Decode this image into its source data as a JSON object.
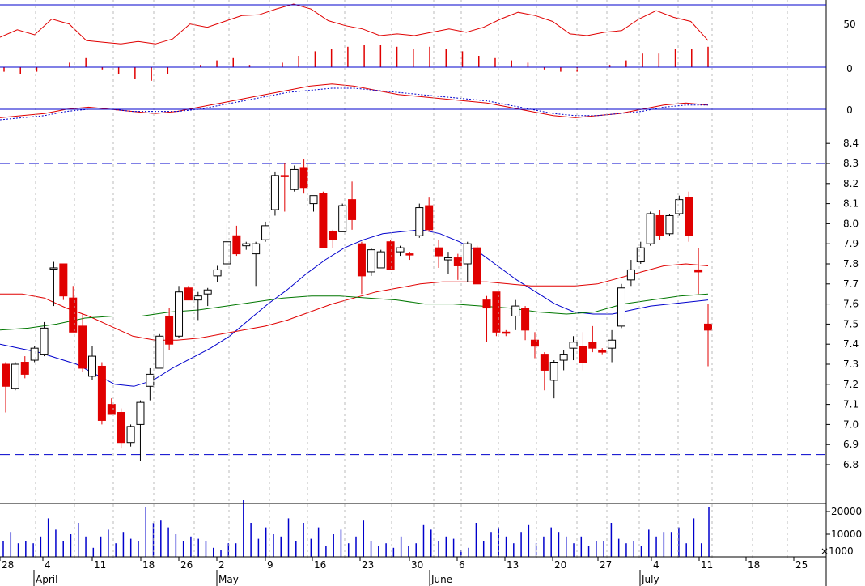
{
  "chart_data": [
    {
      "type": "line",
      "panel": "oscillator-top",
      "y_tick_labels": [
        "50",
        "0"
      ],
      "series": [
        {
          "values": [
            36,
            45,
            39,
            58,
            52,
            32,
            30,
            28,
            31,
            28,
            34,
            52,
            48,
            55,
            62,
            63,
            70,
            76,
            70,
            56,
            50,
            46,
            38,
            40,
            38,
            42,
            46,
            42,
            48,
            58,
            66,
            62,
            55,
            40,
            38,
            42,
            44,
            58,
            68,
            60,
            55,
            32
          ]
        }
      ],
      "histogram": [
        -2,
        -3,
        -2,
        0,
        2,
        4,
        -1,
        -3,
        -5,
        -6,
        -3,
        0,
        1,
        3,
        4,
        1,
        0,
        2,
        5,
        7,
        8,
        9,
        10,
        10,
        9,
        8,
        9,
        8,
        7,
        5,
        4,
        3,
        2,
        -1,
        -2,
        -2,
        0,
        1,
        3,
        6,
        6,
        8,
        8,
        9
      ]
    },
    {
      "type": "line",
      "panel": "macd",
      "y_tick_labels": [
        "0"
      ],
      "series": [
        {
          "color": "#e00000",
          "values": [
            -0.04,
            -0.03,
            -0.02,
            0.0,
            0.01,
            0.0,
            -0.01,
            -0.02,
            -0.01,
            0.01,
            0.03,
            0.05,
            0.07,
            0.09,
            0.11,
            0.12,
            0.11,
            0.09,
            0.07,
            0.06,
            0.05,
            0.04,
            0.03,
            0.01,
            -0.01,
            -0.03,
            -0.04,
            -0.03,
            -0.02,
            0.0,
            0.02,
            0.03,
            0.02
          ]
        },
        {
          "color": "#0000cc",
          "style": "dotted",
          "values": [
            -0.05,
            -0.04,
            -0.03,
            -0.01,
            0.0,
            0.0,
            -0.01,
            -0.01,
            -0.01,
            0.0,
            0.02,
            0.04,
            0.06,
            0.08,
            0.09,
            0.1,
            0.1,
            0.09,
            0.08,
            0.07,
            0.06,
            0.05,
            0.04,
            0.02,
            0.0,
            -0.02,
            -0.03,
            -0.03,
            -0.02,
            -0.01,
            0.01,
            0.02,
            0.02
          ]
        }
      ]
    },
    {
      "type": "candlestick",
      "panel": "price",
      "ylim": [
        6.75,
        8.45
      ],
      "y_tick_labels": [
        "8.4",
        "8.3",
        "8.2",
        "8.1",
        "8.0",
        "7.9",
        "7.8",
        "7.7",
        "7.6",
        "7.5",
        "7.4",
        "7.3",
        "7.2",
        "7.1",
        "7.0",
        "6.9",
        "6.8"
      ],
      "x_tick_labels": [
        "28",
        "4",
        "11",
        "18",
        "26",
        "2",
        "9",
        "16",
        "23",
        "30",
        "6",
        "13",
        "20",
        "27",
        "4",
        "11",
        "18",
        "25"
      ],
      "x_month_labels": [
        "April",
        "May",
        "June",
        "July"
      ],
      "hlines": [
        8.3,
        6.85
      ],
      "candles": [
        {
          "o": 7.3,
          "h": 7.31,
          "l": 7.06,
          "c": 7.19,
          "up": false
        },
        {
          "o": 7.18,
          "h": 7.31,
          "l": 7.17,
          "c": 7.3,
          "up": true
        },
        {
          "o": 7.31,
          "h": 7.34,
          "l": 7.23,
          "c": 7.25,
          "up": false
        },
        {
          "o": 7.32,
          "h": 7.39,
          "l": 7.31,
          "c": 7.38,
          "up": true
        },
        {
          "o": 7.35,
          "h": 7.51,
          "l": 7.34,
          "c": 7.48,
          "up": true
        },
        {
          "o": 7.78,
          "h": 7.81,
          "l": 7.59,
          "c": 7.78,
          "up": true
        },
        {
          "o": 7.8,
          "h": 7.8,
          "l": 7.62,
          "c": 7.64,
          "up": false
        },
        {
          "o": 7.63,
          "h": 7.69,
          "l": 7.46,
          "c": 7.46,
          "up": false
        },
        {
          "o": 7.49,
          "h": 7.55,
          "l": 7.26,
          "c": 7.28,
          "up": false
        },
        {
          "o": 7.34,
          "h": 7.39,
          "l": 7.22,
          "c": 7.24,
          "up": true
        },
        {
          "o": 7.29,
          "h": 7.31,
          "l": 7.0,
          "c": 7.02,
          "up": false
        },
        {
          "o": 7.1,
          "h": 7.13,
          "l": 7.05,
          "c": 7.05,
          "up": false
        },
        {
          "o": 7.06,
          "h": 7.08,
          "l": 6.88,
          "c": 6.91,
          "up": false
        },
        {
          "o": 6.91,
          "h": 7.0,
          "l": 6.89,
          "c": 6.99,
          "up": true
        },
        {
          "o": 7.0,
          "h": 7.12,
          "l": 6.82,
          "c": 7.11,
          "up": true
        },
        {
          "o": 7.19,
          "h": 7.28,
          "l": 7.12,
          "c": 7.25,
          "up": true
        },
        {
          "o": 7.28,
          "h": 7.45,
          "l": 7.28,
          "c": 7.44,
          "up": true
        },
        {
          "o": 7.54,
          "h": 7.58,
          "l": 7.37,
          "c": 7.4,
          "up": false
        },
        {
          "o": 7.44,
          "h": 7.69,
          "l": 7.43,
          "c": 7.66,
          "up": true
        },
        {
          "o": 7.68,
          "h": 7.69,
          "l": 7.62,
          "c": 7.62,
          "up": false
        },
        {
          "o": 7.62,
          "h": 7.66,
          "l": 7.52,
          "c": 7.64,
          "up": true
        },
        {
          "o": 7.65,
          "h": 7.68,
          "l": 7.59,
          "c": 7.67,
          "up": true
        },
        {
          "o": 7.74,
          "h": 7.79,
          "l": 7.71,
          "c": 7.77,
          "up": true
        },
        {
          "o": 7.8,
          "h": 8.0,
          "l": 7.79,
          "c": 7.91,
          "up": true
        },
        {
          "o": 7.94,
          "h": 7.99,
          "l": 7.84,
          "c": 7.85,
          "up": false
        },
        {
          "o": 7.89,
          "h": 7.91,
          "l": 7.87,
          "c": 7.9,
          "up": true
        },
        {
          "o": 7.85,
          "h": 7.91,
          "l": 7.69,
          "c": 7.9,
          "up": true
        },
        {
          "o": 7.92,
          "h": 8.01,
          "l": 7.91,
          "c": 7.99,
          "up": true
        },
        {
          "o": 8.07,
          "h": 8.26,
          "l": 8.04,
          "c": 8.24,
          "up": true
        },
        {
          "o": 8.24,
          "h": 8.3,
          "l": 8.06,
          "c": 8.24,
          "up": false
        },
        {
          "o": 8.17,
          "h": 8.29,
          "l": 8.16,
          "c": 8.27,
          "up": true
        },
        {
          "o": 8.28,
          "h": 8.32,
          "l": 8.15,
          "c": 8.18,
          "up": false
        },
        {
          "o": 8.14,
          "h": 8.14,
          "l": 8.06,
          "c": 8.1,
          "up": true
        },
        {
          "o": 8.15,
          "h": 8.16,
          "l": 7.88,
          "c": 7.88,
          "up": false
        },
        {
          "o": 7.96,
          "h": 7.97,
          "l": 7.88,
          "c": 7.92,
          "up": false
        },
        {
          "o": 7.96,
          "h": 8.1,
          "l": 7.96,
          "c": 8.09,
          "up": true
        },
        {
          "o": 8.12,
          "h": 8.21,
          "l": 7.97,
          "c": 8.02,
          "up": false
        },
        {
          "o": 7.9,
          "h": 7.91,
          "l": 7.65,
          "c": 7.74,
          "up": false
        },
        {
          "o": 7.76,
          "h": 7.88,
          "l": 7.74,
          "c": 7.87,
          "up": true
        },
        {
          "o": 7.78,
          "h": 7.87,
          "l": 7.78,
          "c": 7.86,
          "up": true
        },
        {
          "o": 7.91,
          "h": 7.92,
          "l": 7.77,
          "c": 7.77,
          "up": false
        },
        {
          "o": 7.86,
          "h": 7.89,
          "l": 7.84,
          "c": 7.88,
          "up": true
        },
        {
          "o": 7.85,
          "h": 7.86,
          "l": 7.82,
          "c": 7.85,
          "up": false
        },
        {
          "o": 7.94,
          "h": 8.1,
          "l": 7.93,
          "c": 8.08,
          "up": true
        },
        {
          "o": 8.09,
          "h": 8.13,
          "l": 7.96,
          "c": 7.97,
          "up": false
        },
        {
          "o": 7.88,
          "h": 7.92,
          "l": 7.78,
          "c": 7.84,
          "up": false
        },
        {
          "o": 7.83,
          "h": 7.86,
          "l": 7.75,
          "c": 7.82,
          "up": true
        },
        {
          "o": 7.83,
          "h": 7.85,
          "l": 7.72,
          "c": 7.79,
          "up": false
        },
        {
          "o": 7.8,
          "h": 7.91,
          "l": 7.71,
          "c": 7.9,
          "up": true
        },
        {
          "o": 7.88,
          "h": 7.89,
          "l": 7.7,
          "c": 7.7,
          "up": false
        },
        {
          "o": 7.62,
          "h": 7.64,
          "l": 7.41,
          "c": 7.58,
          "up": false
        },
        {
          "o": 7.66,
          "h": 7.66,
          "l": 7.44,
          "c": 7.46,
          "up": false
        },
        {
          "o": 7.46,
          "h": 7.47,
          "l": 7.44,
          "c": 7.46,
          "up": false
        },
        {
          "o": 7.54,
          "h": 7.62,
          "l": 7.47,
          "c": 7.59,
          "up": true
        },
        {
          "o": 7.58,
          "h": 7.59,
          "l": 7.42,
          "c": 7.47,
          "up": false
        },
        {
          "o": 7.42,
          "h": 7.46,
          "l": 7.33,
          "c": 7.39,
          "up": false
        },
        {
          "o": 7.35,
          "h": 7.36,
          "l": 7.17,
          "c": 7.27,
          "up": false
        },
        {
          "o": 7.22,
          "h": 7.32,
          "l": 7.13,
          "c": 7.31,
          "up": true
        },
        {
          "o": 7.32,
          "h": 7.37,
          "l": 7.27,
          "c": 7.35,
          "up": true
        },
        {
          "o": 7.38,
          "h": 7.44,
          "l": 7.32,
          "c": 7.41,
          "up": true
        },
        {
          "o": 7.39,
          "h": 7.46,
          "l": 7.27,
          "c": 7.31,
          "up": false
        },
        {
          "o": 7.41,
          "h": 7.49,
          "l": 7.36,
          "c": 7.38,
          "up": false
        },
        {
          "o": 7.37,
          "h": 7.38,
          "l": 7.35,
          "c": 7.36,
          "up": false
        },
        {
          "o": 7.38,
          "h": 7.47,
          "l": 7.31,
          "c": 7.42,
          "up": true
        },
        {
          "o": 7.49,
          "h": 7.7,
          "l": 7.48,
          "c": 7.68,
          "up": true
        },
        {
          "o": 7.72,
          "h": 7.82,
          "l": 7.69,
          "c": 7.77,
          "up": true
        },
        {
          "o": 7.81,
          "h": 7.91,
          "l": 7.8,
          "c": 7.88,
          "up": true
        },
        {
          "o": 7.9,
          "h": 8.06,
          "l": 7.89,
          "c": 8.05,
          "up": true
        },
        {
          "o": 8.04,
          "h": 8.07,
          "l": 7.92,
          "c": 7.94,
          "up": false
        },
        {
          "o": 7.95,
          "h": 8.05,
          "l": 7.94,
          "c": 8.04,
          "up": true
        },
        {
          "o": 8.05,
          "h": 8.14,
          "l": 8.04,
          "c": 8.12,
          "up": true
        },
        {
          "o": 8.13,
          "h": 8.16,
          "l": 7.91,
          "c": 7.94,
          "up": false
        },
        {
          "o": 7.76,
          "h": 7.88,
          "l": 7.65,
          "c": 7.77,
          "up": false
        },
        {
          "o": 7.5,
          "h": 7.6,
          "l": 7.29,
          "c": 7.47,
          "up": false
        }
      ],
      "moving_averages": [
        {
          "color": "#0000cc",
          "values": [
            7.4,
            7.38,
            7.36,
            7.33,
            7.3,
            7.25,
            7.2,
            7.19,
            7.22,
            7.28,
            7.33,
            7.38,
            7.44,
            7.52,
            7.6,
            7.67,
            7.75,
            7.82,
            7.88,
            7.92,
            7.95,
            7.96,
            7.97,
            7.95,
            7.91,
            7.86,
            7.79,
            7.72,
            7.66,
            7.6,
            7.56,
            7.55,
            7.55,
            7.57,
            7.59,
            7.6,
            7.61,
            7.62
          ]
        },
        {
          "color": "#e00000",
          "values": [
            7.65,
            7.65,
            7.63,
            7.58,
            7.54,
            7.49,
            7.44,
            7.42,
            7.42,
            7.43,
            7.45,
            7.47,
            7.49,
            7.52,
            7.56,
            7.6,
            7.63,
            7.66,
            7.68,
            7.7,
            7.71,
            7.71,
            7.71,
            7.7,
            7.69,
            7.69,
            7.69,
            7.7,
            7.73,
            7.76,
            7.79,
            7.8,
            7.79
          ]
        },
        {
          "color": "#007700",
          "values": [
            7.47,
            7.48,
            7.5,
            7.53,
            7.54,
            7.54,
            7.56,
            7.57,
            7.59,
            7.61,
            7.63,
            7.64,
            7.64,
            7.63,
            7.62,
            7.6,
            7.6,
            7.59,
            7.58,
            7.56,
            7.55,
            7.56,
            7.6,
            7.62,
            7.64,
            7.65
          ]
        }
      ]
    },
    {
      "type": "bar",
      "panel": "volume",
      "y_tick_labels": [
        "20000",
        "10000"
      ],
      "unit_label": "×1000",
      "values": [
        7000,
        11000,
        6000,
        7000,
        6000,
        9000,
        17000,
        12000,
        7000,
        10000,
        15000,
        9000,
        4000,
        9000,
        12000,
        6000,
        11000,
        8000,
        7000,
        22000,
        15000,
        16000,
        13000,
        10000,
        7000,
        9000,
        8000,
        7000,
        4000,
        3000,
        6000,
        6000,
        25000,
        15000,
        8000,
        13000,
        10000,
        9000,
        17000,
        7000,
        15000,
        8000,
        13000,
        5000,
        10000,
        12000,
        6000,
        9000,
        16000,
        7000,
        5000,
        6000,
        4000,
        9000,
        5000,
        6000,
        14000,
        12000,
        7000,
        9000,
        8000,
        3000,
        4000,
        15000,
        7000,
        11000,
        13000,
        9000,
        6000,
        11000,
        14000,
        6000,
        9000,
        13000,
        11000,
        9000,
        6000,
        9000,
        5000,
        7000,
        7000,
        15000,
        8000,
        6000,
        7000,
        5000,
        12000,
        9000,
        11000,
        11000,
        13000,
        6000,
        17000,
        6000,
        22000
      ]
    }
  ]
}
